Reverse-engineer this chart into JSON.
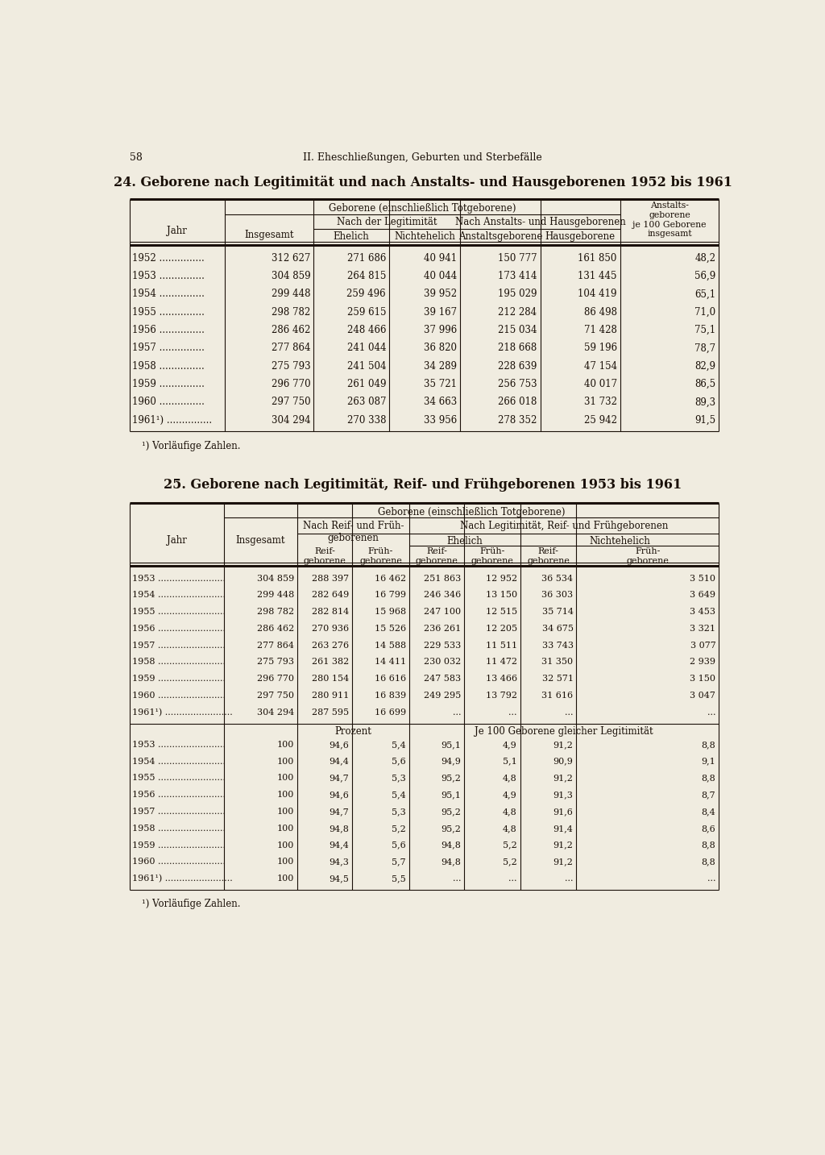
{
  "page_number": "58",
  "header": "II. Eheschließungen, Geburten und Sterbefälle",
  "bg_color": "#f0ece0",
  "table1": {
    "title": "24. Geborene nach Legitimität und nach Anstalts- und Hausgeborenen 1952 bis 1961",
    "rows": [
      [
        "1952",
        "312 627",
        "271 686",
        "40 941",
        "150 777",
        "161 850",
        "48,2"
      ],
      [
        "1953",
        "304 859",
        "264 815",
        "40 044",
        "173 414",
        "131 445",
        "56,9"
      ],
      [
        "1954",
        "299 448",
        "259 496",
        "39 952",
        "195 029",
        "104 419",
        "65,1"
      ],
      [
        "1955",
        "298 782",
        "259 615",
        "39 167",
        "212 284",
        "86 498",
        "71,0"
      ],
      [
        "1956",
        "286 462",
        "248 466",
        "37 996",
        "215 034",
        "71 428",
        "75,1"
      ],
      [
        "1957",
        "277 864",
        "241 044",
        "36 820",
        "218 668",
        "59 196",
        "78,7"
      ],
      [
        "1958",
        "275 793",
        "241 504",
        "34 289",
        "228 639",
        "47 154",
        "82,9"
      ],
      [
        "1959",
        "296 770",
        "261 049",
        "35 721",
        "256 753",
        "40 017",
        "86,5"
      ],
      [
        "1960",
        "297 750",
        "263 087",
        "34 663",
        "266 018",
        "31 732",
        "89,3"
      ],
      [
        "1961¹)",
        "304 294",
        "270 338",
        "33 956",
        "278 352",
        "25 942",
        "91,5"
      ]
    ],
    "footnote": "¹) Vorläufige Zahlen."
  },
  "table2": {
    "title": "25. Geborene nach Legitimität, Reif- und Frühgeborenen 1953 bis 1961",
    "rows_abs": [
      [
        "1953",
        "304 859",
        "288 397",
        "16 462",
        "251 863",
        "12 952",
        "36 534",
        "3 510"
      ],
      [
        "1954",
        "299 448",
        "282 649",
        "16 799",
        "246 346",
        "13 150",
        "36 303",
        "3 649"
      ],
      [
        "1955",
        "298 782",
        "282 814",
        "15 968",
        "247 100",
        "12 515",
        "35 714",
        "3 453"
      ],
      [
        "1956",
        "286 462",
        "270 936",
        "15 526",
        "236 261",
        "12 205",
        "34 675",
        "3 321"
      ],
      [
        "1957",
        "277 864",
        "263 276",
        "14 588",
        "229 533",
        "11 511",
        "33 743",
        "3 077"
      ],
      [
        "1958",
        "275 793",
        "261 382",
        "14 411",
        "230 032",
        "11 472",
        "31 350",
        "2 939"
      ],
      [
        "1959",
        "296 770",
        "280 154",
        "16 616",
        "247 583",
        "13 466",
        "32 571",
        "3 150"
      ],
      [
        "1960",
        "297 750",
        "280 911",
        "16 839",
        "249 295",
        "13 792",
        "31 616",
        "3 047"
      ],
      [
        "1961¹)",
        "304 294",
        "287 595",
        "16 699",
        "...",
        "...",
        "...",
        "..."
      ]
    ],
    "rows_pct": [
      [
        "1953",
        "100",
        "94,6",
        "5,4",
        "95,1",
        "4,9",
        "91,2",
        "8,8"
      ],
      [
        "1954",
        "100",
        "94,4",
        "5,6",
        "94,9",
        "5,1",
        "90,9",
        "9,1"
      ],
      [
        "1955",
        "100",
        "94,7",
        "5,3",
        "95,2",
        "4,8",
        "91,2",
        "8,8"
      ],
      [
        "1956",
        "100",
        "94,6",
        "5,4",
        "95,1",
        "4,9",
        "91,3",
        "8,7"
      ],
      [
        "1957",
        "100",
        "94,7",
        "5,3",
        "95,2",
        "4,8",
        "91,6",
        "8,4"
      ],
      [
        "1958",
        "100",
        "94,8",
        "5,2",
        "95,2",
        "4,8",
        "91,4",
        "8,6"
      ],
      [
        "1959",
        "100",
        "94,4",
        "5,6",
        "94,8",
        "5,2",
        "91,2",
        "8,8"
      ],
      [
        "1960",
        "100",
        "94,3",
        "5,7",
        "94,8",
        "5,2",
        "91,2",
        "8,8"
      ],
      [
        "1961¹)",
        "100",
        "94,5",
        "5,5",
        "...",
        "...",
        "...",
        "..."
      ]
    ],
    "footnote": "¹) Vorläufige Zahlen."
  }
}
